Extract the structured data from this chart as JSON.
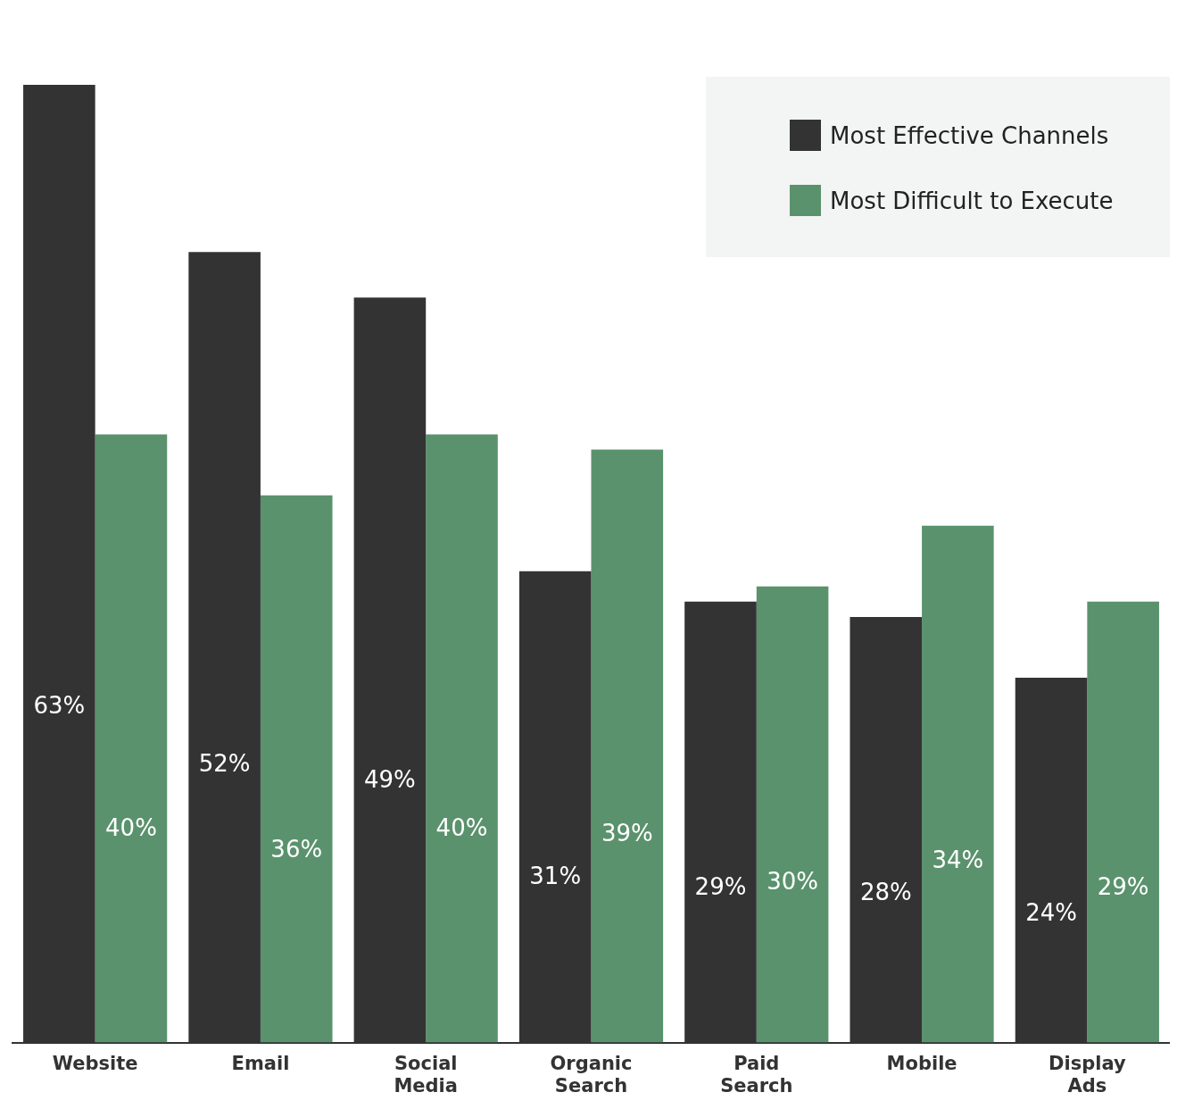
{
  "chart_data": {
    "type": "bar",
    "categories": [
      "Website",
      "Email",
      "Social Media",
      "Organic Search",
      "Paid Search",
      "Mobile",
      "Display Ads"
    ],
    "series": [
      {
        "name": "Most Effective Channels",
        "color": "#333333",
        "values": [
          63,
          52,
          49,
          31,
          29,
          28,
          24
        ],
        "value_labels": [
          "63%",
          "52%",
          "49%",
          "31%",
          "29%",
          "28%",
          "24%"
        ]
      },
      {
        "name": "Most Difficult to Execute",
        "color": "#5a926d",
        "values": [
          40,
          36,
          40,
          39,
          30,
          34,
          29
        ],
        "value_labels": [
          "40%",
          "36%",
          "40%",
          "39%",
          "30%",
          "34%",
          "29%"
        ]
      }
    ],
    "tick_labels": "x",
    "grid": false,
    "legend": "top right"
  }
}
